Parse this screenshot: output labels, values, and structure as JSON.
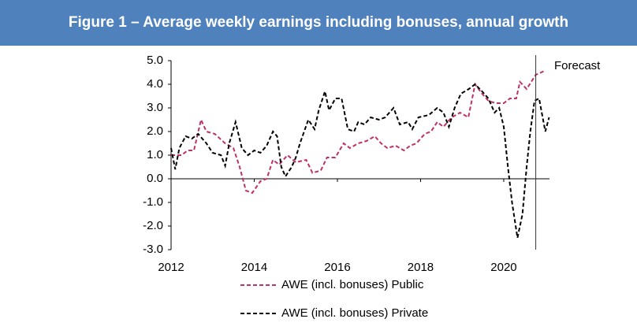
{
  "chart_data": {
    "type": "line",
    "title": "Figure 1 – Average weekly earnings including bonuses, annual growth",
    "xlim": [
      2012,
      2021.1
    ],
    "xticks": [
      2012,
      2014,
      2016,
      2018,
      2020
    ],
    "ylim": [
      -3,
      5
    ],
    "yticks": [
      {
        "value": 5,
        "label": "5.0"
      },
      {
        "value": 4,
        "label": "4.0"
      },
      {
        "value": 3,
        "label": "3.0"
      },
      {
        "value": 2,
        "label": "2.0"
      },
      {
        "value": 1,
        "label": "1.0"
      },
      {
        "value": 0,
        "label": "0.0"
      },
      {
        "value": -1,
        "label": "-1.0"
      },
      {
        "value": -2,
        "label": "-2.0"
      },
      {
        "value": -3,
        "label": "-3.0"
      }
    ],
    "annotation": {
      "text": "Forecast",
      "x": 2020.77
    },
    "series": [
      {
        "name": "AWE (incl. bonuses) Public",
        "color": "#c0306a",
        "x": [
          2012.0,
          2012.25,
          2012.4,
          2012.55,
          2012.72,
          2012.85,
          2013.05,
          2013.3,
          2013.5,
          2013.65,
          2013.8,
          2013.95,
          2014.15,
          2014.3,
          2014.45,
          2014.6,
          2014.8,
          2015.0,
          2015.25,
          2015.4,
          2015.6,
          2015.75,
          2015.95,
          2016.15,
          2016.3,
          2016.5,
          2016.7,
          2016.9,
          2017.05,
          2017.2,
          2017.4,
          2017.6,
          2017.75,
          2017.9,
          2018.1,
          2018.25,
          2018.4,
          2018.55,
          2018.75,
          2018.95,
          2019.15,
          2019.31,
          2019.48,
          2019.63,
          2019.8,
          2020.0,
          2020.15,
          2020.3,
          2020.39,
          2020.55,
          2020.77,
          2020.96
        ],
        "values": [
          1.0,
          1.0,
          1.2,
          1.2,
          2.5,
          2.0,
          1.9,
          1.5,
          1.3,
          0.5,
          -0.5,
          -0.6,
          -0.1,
          0.0,
          0.8,
          0.6,
          1.0,
          0.7,
          0.8,
          0.25,
          0.35,
          0.9,
          0.9,
          1.5,
          1.3,
          1.5,
          1.6,
          1.8,
          1.5,
          1.3,
          1.4,
          1.2,
          1.4,
          1.5,
          1.9,
          2.0,
          2.4,
          2.2,
          2.6,
          2.8,
          2.6,
          4.0,
          3.6,
          3.3,
          3.2,
          3.2,
          3.4,
          3.4,
          4.1,
          3.8,
          4.4,
          4.55
        ]
      },
      {
        "name": "AWE (incl. bonuses) Private",
        "color": "#000000",
        "x": [
          2012.0,
          2012.1,
          2012.2,
          2012.35,
          2012.5,
          2012.65,
          2012.85,
          2013.0,
          2013.2,
          2013.3,
          2013.4,
          2013.55,
          2013.7,
          2013.85,
          2014.0,
          2014.15,
          2014.3,
          2014.45,
          2014.55,
          2014.65,
          2014.75,
          2014.9,
          2015.0,
          2015.1,
          2015.3,
          2015.45,
          2015.55,
          2015.7,
          2015.8,
          2015.95,
          2016.1,
          2016.25,
          2016.4,
          2016.5,
          2016.65,
          2016.8,
          2017.0,
          2017.15,
          2017.35,
          2017.5,
          2017.7,
          2017.8,
          2017.95,
          2018.2,
          2018.4,
          2018.55,
          2018.68,
          2018.82,
          2018.97,
          2019.16,
          2019.31,
          2019.48,
          2019.63,
          2019.78,
          2019.89,
          2020.0,
          2020.1,
          2020.2,
          2020.33,
          2020.45,
          2020.55,
          2020.64,
          2020.74,
          2020.85,
          2021.0,
          2021.09
        ],
        "values": [
          1.3,
          0.4,
          1.3,
          1.8,
          1.7,
          1.9,
          1.5,
          1.1,
          1.0,
          0.55,
          1.5,
          2.4,
          1.3,
          1.0,
          1.2,
          1.1,
          1.4,
          2.0,
          1.8,
          0.5,
          0.1,
          0.5,
          0.9,
          1.5,
          2.5,
          2.1,
          2.9,
          3.7,
          2.9,
          3.4,
          3.4,
          2.1,
          2.0,
          2.4,
          2.3,
          2.6,
          2.5,
          2.6,
          3.0,
          2.3,
          2.4,
          2.1,
          2.6,
          2.7,
          3.0,
          2.8,
          2.2,
          3.0,
          3.6,
          3.8,
          4.0,
          3.7,
          3.4,
          2.8,
          3.0,
          2.2,
          0.5,
          -1.0,
          -2.5,
          -1.5,
          0.5,
          2.0,
          3.3,
          3.4,
          2.0,
          2.6
        ]
      }
    ]
  }
}
